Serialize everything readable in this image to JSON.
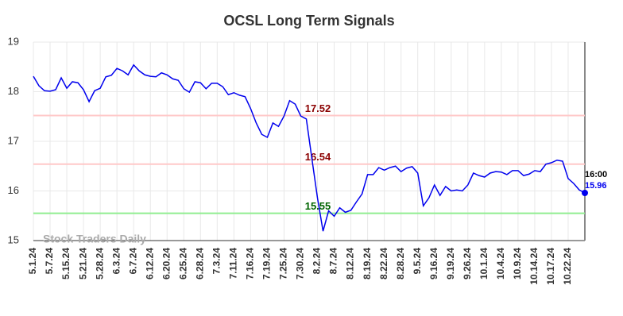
{
  "chart_data": {
    "type": "line",
    "title": "OCSL Long Term Signals",
    "categories": [
      "5.1.24",
      null,
      null,
      "5.7.24",
      null,
      null,
      "5.15.24",
      null,
      null,
      "5.21.24",
      null,
      null,
      "5.28.24",
      null,
      null,
      "6.3.24",
      null,
      null,
      "6.7.24",
      null,
      null,
      "6.12.24",
      null,
      null,
      "6.20.24",
      null,
      null,
      "6.25.24",
      null,
      null,
      "6.28.24",
      null,
      null,
      "7.3.24",
      null,
      null,
      "7.11.24",
      null,
      null,
      "7.16.24",
      null,
      null,
      "7.19.24",
      null,
      null,
      "7.25.24",
      null,
      null,
      "7.30.24",
      null,
      null,
      "8.2.24",
      null,
      null,
      "8.7.24",
      null,
      null,
      "8.12.24",
      null,
      null,
      "8.19.24",
      null,
      null,
      "8.22.24",
      null,
      null,
      "8.28.24",
      null,
      null,
      "9.5.24",
      null,
      null,
      "9.16.24",
      null,
      null,
      "9.19.24",
      null,
      null,
      "9.26.24",
      null,
      null,
      "10.1.24",
      null,
      null,
      "10.4.24",
      null,
      null,
      "10.9.24",
      null,
      null,
      "10.14.24",
      null,
      null,
      "10.17.24",
      null,
      null,
      "10.22.24",
      null,
      null,
      null
    ],
    "values": [
      18.31,
      18.12,
      18.02,
      18.01,
      18.04,
      18.28,
      18.07,
      18.2,
      18.18,
      18.04,
      17.8,
      18.02,
      18.07,
      18.3,
      18.33,
      18.47,
      18.42,
      18.34,
      18.54,
      18.42,
      18.34,
      18.31,
      18.3,
      18.38,
      18.34,
      18.26,
      18.23,
      18.06,
      17.99,
      18.2,
      18.18,
      18.06,
      18.17,
      18.17,
      18.1,
      17.94,
      17.98,
      17.93,
      17.9,
      17.66,
      17.37,
      17.14,
      17.08,
      17.37,
      17.3,
      17.51,
      17.82,
      17.75,
      17.51,
      17.45,
      16.65,
      15.86,
      15.19,
      15.6,
      15.49,
      15.66,
      15.57,
      15.61,
      15.78,
      15.94,
      16.33,
      16.33,
      16.47,
      16.42,
      16.47,
      16.5,
      16.39,
      16.46,
      16.49,
      16.36,
      15.7,
      15.86,
      16.12,
      15.91,
      16.09,
      16.0,
      16.02,
      16.0,
      16.12,
      16.36,
      16.31,
      16.28,
      16.36,
      16.39,
      16.38,
      16.33,
      16.41,
      16.41,
      16.31,
      16.34,
      16.41,
      16.39,
      16.54,
      16.57,
      16.62,
      16.6,
      16.25,
      16.15,
      16.02,
      15.96
    ],
    "color": "#0000ee",
    "ylim": [
      15,
      19
    ],
    "yticks": [
      15,
      16,
      17,
      18,
      19
    ],
    "grid": true,
    "hlines": [
      {
        "value": 17.52,
        "color": "#ffc8c8",
        "label_color": "#8b0000"
      },
      {
        "value": 16.54,
        "color": "#ffc8c8",
        "label_color": "#8b0000"
      },
      {
        "value": 15.55,
        "color": "#90ee90",
        "label_color": "#006400"
      }
    ],
    "last_time": "16:00",
    "watermark": "Stock Traders Daily"
  }
}
